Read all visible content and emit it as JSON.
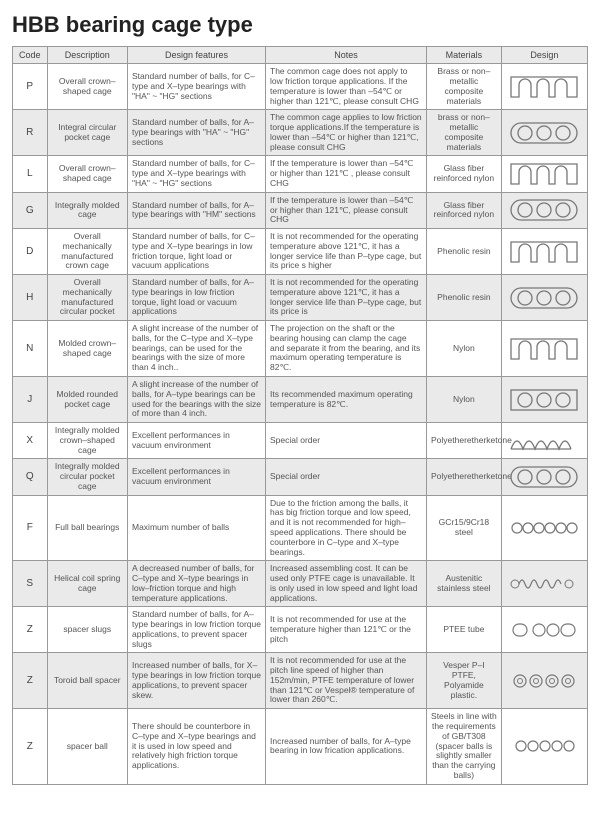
{
  "title": "HBB bearing cage type",
  "headers": [
    "Code",
    "Description",
    "Design features",
    "Notes",
    "Materials",
    "Design"
  ],
  "rows": [
    {
      "code": "P",
      "desc": "Overall crown–shaped cage",
      "feat": "Standard number of balls, for C–type and X–type bearings with \"HA\" ~ \"HG\" sections",
      "notes": "The common cage does not apply to low friction torque applications. If the temperature is lower than –54℃ or higher than 121℃, please consult CHG",
      "mat": "Brass or non–metallic composite materials",
      "design": "crown"
    },
    {
      "code": "R",
      "desc": "Integral circular pocket cage",
      "feat": "Standard number of balls, for A–type bearings with \"HA\" ~ \"HG\" sections",
      "notes": "The common cage applies to low friction torque applications.If the temperature is lower than –54℃ or higher than 121℃, please consult CHG",
      "mat": "brass or non–metallic composite materials",
      "design": "ring3"
    },
    {
      "code": "L",
      "desc": "Overall crown–shaped cage",
      "feat": "Standard number of balls, for C–type and X–type bearings with \"HA\" ~ \"HG\" sections",
      "notes": "If the temperature is lower than –54℃ or higher than 121℃ , please consult CHG",
      "mat": "Glass fiber reinforced nylon",
      "design": "crown"
    },
    {
      "code": "G",
      "desc": "Integrally molded cage",
      "feat": "Standard number of balls, for A–type bearings with \"HM\" sections",
      "notes": "If the temperature is lower than –54℃ or higher than 121℃, please consult CHG",
      "mat": "Glass fiber reinforced nylon",
      "design": "ring3"
    },
    {
      "code": "D",
      "desc": "Overall mechanically manufactured crown cage",
      "feat": "Standard number of balls, for C–type and X–type bearings in low friction torque, light load or vacuum applications",
      "notes": "It is not recommended for the operating temperature above 121℃, it has a longer service life than P–type cage, but its price s higher",
      "mat": "Phenolic resin",
      "design": "crown"
    },
    {
      "code": "H",
      "desc": "Overall mechanically manufactured circular pocket",
      "feat": "Standard number of balls, for A–type bearings in low friction torque, light load or vacuum applications",
      "notes": "It is not recommended for the operating temperature above 121℃, it has a longer service life than P–type cage, but its price is",
      "mat": "Phenolic resin",
      "design": "ring3"
    },
    {
      "code": "N",
      "desc": "Molded crown–shaped cage",
      "feat": "A slight increase of the number of balls, for the C–type and X–type bearings, can be used for the bearings with the size of more than 4 inch..",
      "notes": "The projection on the shaft or the bearing housing can clamp the cage and separate it from the bearing, and its maximum operating temperature is 82℃.",
      "mat": "Nylon",
      "design": "crown"
    },
    {
      "code": "J",
      "desc": "Molded rounded pocket cage",
      "feat": "A slight increase of the number of balls, for A–type bearings can be used for the bearings with the size of more than 4 inch.",
      "notes": "Its recommended maximum operating temperature is 82℃.",
      "mat": "Nylon",
      "design": "ring3sq"
    },
    {
      "code": "X",
      "desc": "Integrally molded crown–shaped cage",
      "feat": "Excellent performances in vacuum environment",
      "notes": "Special order",
      "mat": "Polyetheretherketone",
      "design": "crownwave"
    },
    {
      "code": "Q",
      "desc": "Integrally molded circular pocket cage",
      "feat": "Excellent performances in vacuum environment",
      "notes": "Special order",
      "mat": "Polyetheretherketone",
      "design": "ring3"
    },
    {
      "code": "F",
      "desc": "Full ball bearings",
      "feat": "Maximum number of balls",
      "notes": "Due to the friction among the balls, it has big friction torque and low speed, and it is not recommended for high–speed applications. There should be counterbore in C–type and X–type bearings.",
      "mat": "GCr15/9Cr18 steel",
      "design": "balls6"
    },
    {
      "code": "S",
      "desc": "Helical coil spring cage",
      "feat": "A decreased number of balls, for C–type and X–type bearings in low–friction torque and high temperature applications.",
      "notes": "Increased assembling cost. It can be used only PTFE cage is unavailable. It is only used in low speed and light load applications.",
      "mat": "Austenitic stainless steel",
      "design": "spring"
    },
    {
      "code": "Z",
      "desc": "spacer slugs",
      "feat": "Standard number of balls, for A–type bearings in low friction torque applications, to prevent spacer slugs",
      "notes": "It is not recommended for use at the temperature higher than 121℃ or the pitch",
      "mat": "PTEE tube",
      "design": "slugs"
    },
    {
      "code": "Z",
      "desc": "Toroid ball spacer",
      "feat": "Increased number of balls, for X–type bearings in low friction torque applications, to prevent spacer skew.",
      "notes": "It is not recommended for use at the pitch line speed of higher than 152m/min, PTFE temperature of lower than 121℃ or Vespel® temperature of lower than 260℃.",
      "mat": "Vesper P–I PTFE, Polyamide plastic.",
      "design": "toroid"
    },
    {
      "code": "Z",
      "desc": "spacer ball",
      "feat": "There should be counterbore in C–type and X–type bearings and it is used in low speed and relatively high friction torque applications.",
      "notes": "Increased number of balls, for A–type bearing in low frication applications.",
      "mat": "Steels in line with the requirements of GB/T308 (spacer balls is slightly smaller than the carrying balls)",
      "design": "balls5"
    }
  ],
  "colors": {
    "border": "#999999",
    "altRow": "#eaeaea",
    "stroke": "#777777"
  }
}
